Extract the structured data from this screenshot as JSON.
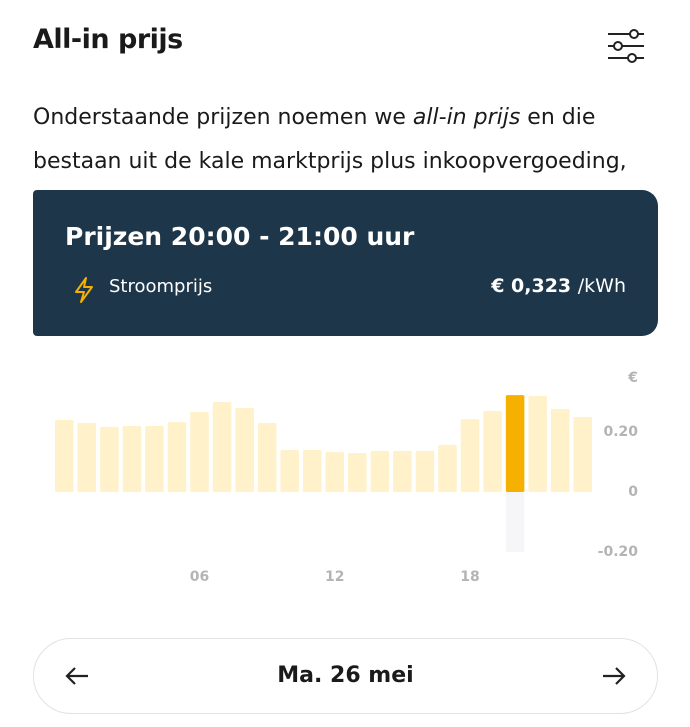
{
  "header": {
    "title": "All-in prijs"
  },
  "intro": {
    "parts": [
      "Onderstaande prijzen noemen we ",
      "all-in prijs",
      " en die bestaan uit de kale marktprijs plus inkoopvergoeding,"
    ]
  },
  "tooltip": {
    "title": "Prijzen 20:00 - 21:00 uur",
    "label": "Stroomprijs",
    "price": "€ 0,323",
    "unit": "/kWh"
  },
  "chart_data": {
    "type": "bar",
    "categories": [
      null,
      null,
      null,
      null,
      null,
      null,
      "06",
      null,
      null,
      null,
      null,
      null,
      "12",
      null,
      null,
      null,
      null,
      null,
      "18",
      null,
      null,
      null,
      null,
      null
    ],
    "values": [
      0.24,
      0.23,
      0.217,
      0.22,
      0.22,
      0.233,
      0.267,
      0.3,
      0.28,
      0.23,
      0.14,
      0.14,
      0.133,
      0.13,
      0.137,
      0.137,
      0.137,
      0.157,
      0.243,
      0.27,
      0.323,
      0.32,
      0.277,
      0.25
    ],
    "color": "#fff1c9",
    "highlight_color": "#f5b000",
    "highlight_index": 20,
    "y_unit": "€",
    "ylim": [
      -0.2,
      0.38
    ],
    "yticks": [
      {
        "value": -0.2,
        "label": "-0.20"
      },
      0,
      {
        "value": 0.2,
        "label": "0.20"
      }
    ],
    "grid": false
  },
  "nav": {
    "date": "Ma. 26 mei"
  }
}
